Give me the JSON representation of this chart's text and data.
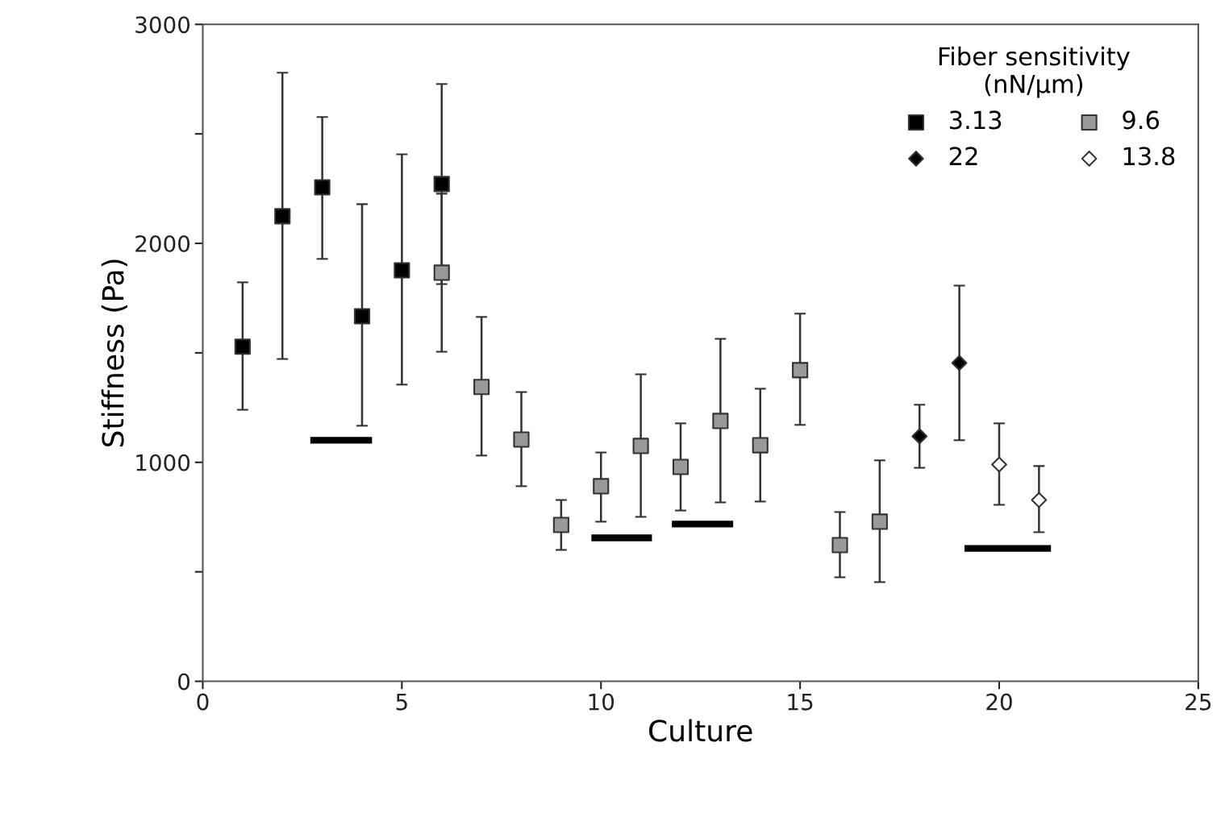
{
  "chart_data": {
    "type": "scatter",
    "xlabel": "Culture",
    "ylabel": "Stiffness (Pa)",
    "legend_title": "Fiber sensitivity\n(nN/µm)",
    "legend": "top right",
    "xlim": [
      0,
      25
    ],
    "xticks": [
      0,
      5,
      10,
      15,
      20,
      25
    ],
    "ylim": [
      0,
      3000
    ],
    "yticks": [
      0,
      {
        "value": 500,
        "label": null
      },
      1000,
      {
        "value": 1500,
        "label": null
      },
      2000,
      {
        "value": 2500,
        "label": null
      },
      3000
    ],
    "grid": false,
    "series": [
      {
        "name": "3.13",
        "color": "#000000",
        "marker": "square",
        "x": [
          1,
          2,
          3,
          4,
          5,
          6
        ],
        "values": [
          1528,
          2124,
          2256,
          1667,
          1877,
          2271
        ],
        "errors": [
          [
            1240,
            1822
          ],
          [
            1472,
            2779
          ],
          [
            1929,
            2577
          ],
          [
            1167,
            2179
          ],
          [
            1355,
            2407
          ],
          [
            1814,
            2728
          ]
        ]
      },
      {
        "name": "22",
        "color": "#000000",
        "marker": "diamond",
        "x": [
          18,
          19
        ],
        "values": [
          1119,
          1454
        ],
        "errors": [
          [
            975,
            1263
          ],
          [
            1101,
            1807
          ]
        ]
      },
      {
        "name": "9.6",
        "color": "#999999",
        "marker": "square",
        "x": [
          6,
          7,
          8,
          9,
          10,
          11,
          12,
          13,
          14,
          15,
          16,
          17
        ],
        "values": [
          1866,
          1344,
          1104,
          714,
          891,
          1075,
          979,
          1189,
          1078,
          1421,
          622,
          729
        ],
        "errors": [
          [
            1505,
            2227
          ],
          [
            1031,
            1664
          ],
          [
            891,
            1321
          ],
          [
            600,
            828
          ],
          [
            729,
            1045
          ],
          [
            751,
            1402
          ],
          [
            780,
            1178
          ],
          [
            817,
            1564
          ],
          [
            821,
            1336
          ],
          [
            1171,
            1679
          ],
          [
            475,
            773
          ],
          [
            453,
            1009
          ]
        ]
      },
      {
        "name": "13.8",
        "color": "#ffffff",
        "marker": "diamond",
        "x": [
          20,
          21
        ],
        "values": [
          990,
          828
        ],
        "errors": [
          [
            806,
            1178
          ],
          [
            681,
            983
          ]
        ]
      },
      {
        "type": "line",
        "color": "#000000",
        "x": [
          2.7,
          4.25
        ],
        "values": [
          1101,
          1101
        ]
      },
      {
        "type": "line",
        "color": "#000000",
        "x": [
          9.76,
          11.28
        ],
        "values": [
          655,
          655
        ]
      },
      {
        "type": "line",
        "color": "#000000",
        "x": [
          11.78,
          13.32
        ],
        "values": [
          718,
          718
        ]
      },
      {
        "type": "line",
        "color": "#000000",
        "x": [
          19.13,
          21.3
        ],
        "values": [
          607,
          607
        ]
      }
    ]
  }
}
